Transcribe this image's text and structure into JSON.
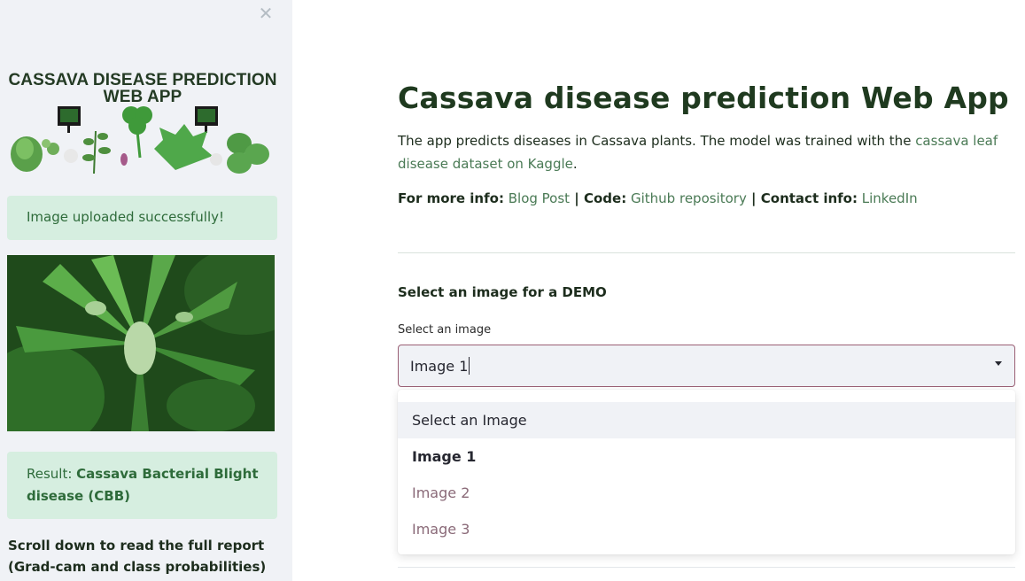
{
  "colors": {
    "sidebar_bg": "#f0f2f6",
    "alert_bg": "#d6eee0",
    "alert_text": "#2e6b3a",
    "link": "#4a7a55",
    "title": "#1f3a1f",
    "select_border": "#9a5f74"
  },
  "sidebar": {
    "close_icon": "close-icon",
    "logo_title_line1": "CASSAVA DISEASE PREDICTION",
    "logo_title_line2": "WEB APP",
    "upload_alert": "Image uploaded successfully!",
    "result_prefix": "Result: ",
    "result_value": "Cassava Bacterial Blight disease (CBB)",
    "scroll_note": "Scroll down to read the full report (Grad-cam and class probabilities)"
  },
  "main": {
    "title": "Cassava disease prediction Web App",
    "description_text": "The app predicts diseases in Cassava plants. The model was trained with the ",
    "description_link": "cassava leaf disease dataset on Kaggle",
    "description_end": ".",
    "info": {
      "more_label": "For more info:",
      "blog_link": "Blog Post",
      "sep1": " | ",
      "code_label": "Code:",
      "github_link": "Github repository",
      "sep2": " | ",
      "contact_label": "Contact info:",
      "linkedin_link": "LinkedIn"
    },
    "demo_title": "Select an image for a DEMO",
    "select_label": "Select an image",
    "select_value": "Image 1",
    "options": [
      "Select an Image",
      "Image 1",
      "Image 2",
      "Image 3"
    ]
  }
}
